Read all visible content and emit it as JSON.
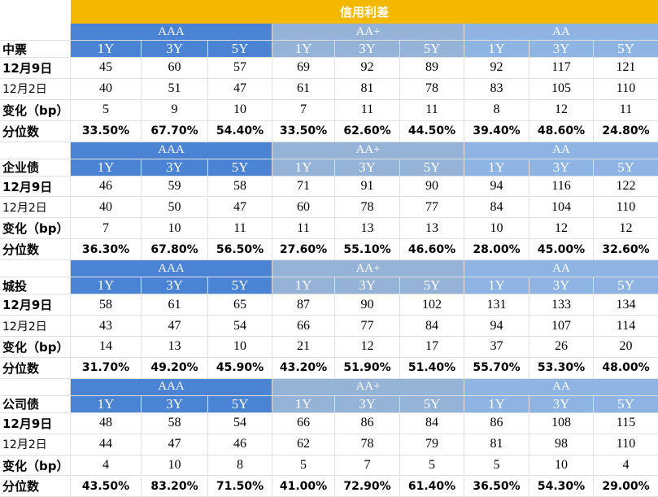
{
  "title": "信用利差",
  "grades": [
    "AAA",
    "AA+",
    "AA"
  ],
  "tenors": [
    "1Y",
    "3Y",
    "5Y"
  ],
  "row_labels": [
    "12月9日",
    "12月2日",
    "变化（bp）",
    "分位数"
  ],
  "sections": [
    {
      "name": "中票",
      "rows": [
        [
          "45",
          "60",
          "57",
          "69",
          "92",
          "89",
          "92",
          "117",
          "121"
        ],
        [
          "40",
          "51",
          "47",
          "61",
          "81",
          "78",
          "83",
          "105",
          "110"
        ],
        [
          "5",
          "9",
          "10",
          "7",
          "11",
          "11",
          "8",
          "12",
          "11"
        ],
        [
          "33.50%",
          "67.70%",
          "54.40%",
          "33.50%",
          "62.60%",
          "44.50%",
          "39.40%",
          "48.60%",
          "24.80%"
        ]
      ]
    },
    {
      "name": "企业债",
      "rows": [
        [
          "46",
          "59",
          "58",
          "71",
          "91",
          "90",
          "94",
          "116",
          "122"
        ],
        [
          "40",
          "50",
          "47",
          "60",
          "78",
          "77",
          "84",
          "104",
          "110"
        ],
        [
          "7",
          "10",
          "11",
          "11",
          "13",
          "13",
          "10",
          "12",
          "12"
        ],
        [
          "36.30%",
          "67.80%",
          "56.50%",
          "27.60%",
          "55.10%",
          "46.60%",
          "28.00%",
          "45.00%",
          "32.60%"
        ]
      ]
    },
    {
      "name": "城投",
      "rows": [
        [
          "58",
          "61",
          "65",
          "87",
          "90",
          "102",
          "131",
          "133",
          "134"
        ],
        [
          "43",
          "47",
          "54",
          "66",
          "77",
          "84",
          "94",
          "107",
          "114"
        ],
        [
          "14",
          "13",
          "10",
          "21",
          "12",
          "17",
          "37",
          "26",
          "20"
        ],
        [
          "31.70%",
          "49.20%",
          "45.90%",
          "43.20%",
          "51.90%",
          "51.40%",
          "55.70%",
          "53.30%",
          "48.00%"
        ]
      ]
    },
    {
      "name": "公司债",
      "rows": [
        [
          "48",
          "58",
          "54",
          "66",
          "86",
          "84",
          "86",
          "108",
          "115"
        ],
        [
          "44",
          "47",
          "46",
          "62",
          "78",
          "79",
          "81",
          "98",
          "110"
        ],
        [
          "4",
          "10",
          "8",
          "5",
          "7",
          "5",
          "5",
          "10",
          "4"
        ],
        [
          "43.50%",
          "83.20%",
          "71.50%",
          "41.00%",
          "72.90%",
          "61.40%",
          "36.50%",
          "54.30%",
          "29.00%"
        ]
      ]
    }
  ],
  "colors": {
    "header": "#f5b800",
    "aaa": "#4a82d4",
    "aa_plus": "#95b3d7",
    "aa": "#8db4e2"
  }
}
